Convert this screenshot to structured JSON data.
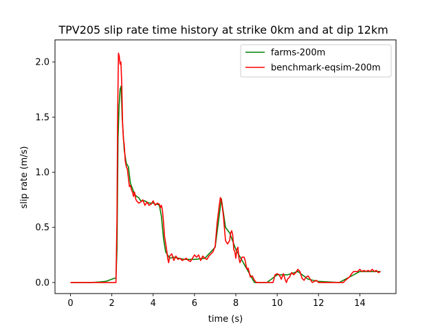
{
  "chart_data": {
    "type": "line",
    "title": "TPV205 slip rate time history at strike 0km and at dip 12km",
    "xlabel": "time (s)",
    "ylabel": "slip rate (m/s)",
    "xlim": [
      -0.75,
      15.75
    ],
    "ylim": [
      -0.1,
      2.2
    ],
    "xticks": [
      0,
      2,
      4,
      6,
      8,
      10,
      12,
      14
    ],
    "xtick_labels": [
      "0",
      "2",
      "4",
      "6",
      "8",
      "10",
      "12",
      "14"
    ],
    "yticks": [
      0.0,
      0.5,
      1.0,
      1.5,
      2.0
    ],
    "ytick_labels": [
      "0.0",
      "0.5",
      "1.0",
      "1.5",
      "2.0"
    ],
    "grid": false,
    "legend_position": "top-right",
    "series": [
      {
        "name": "farms-200m",
        "color": "#008000",
        "points": [
          [
            0,
            0
          ],
          [
            1.0,
            0.0
          ],
          [
            1.4,
            0.005
          ],
          [
            1.7,
            0.01
          ],
          [
            2.0,
            0.03
          ],
          [
            2.15,
            0.04
          ],
          [
            2.2,
            0.04
          ],
          [
            2.25,
            0.3
          ],
          [
            2.3,
            1.3
          ],
          [
            2.35,
            1.6
          ],
          [
            2.4,
            1.75
          ],
          [
            2.45,
            1.78
          ],
          [
            2.5,
            1.5
          ],
          [
            2.55,
            1.35
          ],
          [
            2.6,
            1.2
          ],
          [
            2.7,
            1.08
          ],
          [
            2.8,
            1.05
          ],
          [
            2.9,
            0.9
          ],
          [
            3.0,
            0.85
          ],
          [
            3.1,
            0.8
          ],
          [
            3.2,
            0.78
          ],
          [
            3.3,
            0.77
          ],
          [
            3.4,
            0.74
          ],
          [
            3.5,
            0.74
          ],
          [
            3.6,
            0.74
          ],
          [
            3.7,
            0.73
          ],
          [
            3.8,
            0.72
          ],
          [
            3.9,
            0.72
          ],
          [
            4.0,
            0.72
          ],
          [
            4.1,
            0.71
          ],
          [
            4.2,
            0.71
          ],
          [
            4.3,
            0.7
          ],
          [
            4.4,
            0.6
          ],
          [
            4.5,
            0.4
          ],
          [
            4.6,
            0.28
          ],
          [
            4.7,
            0.25
          ],
          [
            4.8,
            0.22
          ],
          [
            5.0,
            0.23
          ],
          [
            5.5,
            0.21
          ],
          [
            6.0,
            0.21
          ],
          [
            6.5,
            0.22
          ],
          [
            7.0,
            0.32
          ],
          [
            7.3,
            0.76
          ],
          [
            7.5,
            0.5
          ],
          [
            7.7,
            0.45
          ],
          [
            8.0,
            0.3
          ],
          [
            8.3,
            0.2
          ],
          [
            8.6,
            0.1
          ],
          [
            8.9,
            0.0
          ],
          [
            9.5,
            0.0
          ],
          [
            10.0,
            0.07
          ],
          [
            10.5,
            0.07
          ],
          [
            11.0,
            0.1
          ],
          [
            11.5,
            0.03
          ],
          [
            12.0,
            0.01
          ],
          [
            13.0,
            0.0
          ],
          [
            13.5,
            0.05
          ],
          [
            14.0,
            0.1
          ],
          [
            14.5,
            0.1
          ],
          [
            15.0,
            0.1
          ]
        ]
      },
      {
        "name": "benchmark-eqsim-200m",
        "color": "#ff0000",
        "points": [
          [
            0,
            0
          ],
          [
            1.0,
            0.0
          ],
          [
            1.5,
            0.0
          ],
          [
            2.0,
            0.0
          ],
          [
            2.2,
            0.0
          ],
          [
            2.25,
            0.6
          ],
          [
            2.28,
            1.5
          ],
          [
            2.32,
            2.08
          ],
          [
            2.36,
            2.05
          ],
          [
            2.4,
            1.98
          ],
          [
            2.44,
            2.0
          ],
          [
            2.48,
            1.8
          ],
          [
            2.52,
            1.45
          ],
          [
            2.56,
            1.3
          ],
          [
            2.6,
            1.25
          ],
          [
            2.65,
            1.1
          ],
          [
            2.7,
            1.05
          ],
          [
            2.75,
            1.03
          ],
          [
            2.8,
            0.95
          ],
          [
            2.85,
            0.87
          ],
          [
            2.9,
            0.88
          ],
          [
            2.95,
            0.84
          ],
          [
            3.0,
            0.82
          ],
          [
            3.05,
            0.78
          ],
          [
            3.1,
            0.82
          ],
          [
            3.15,
            0.76
          ],
          [
            3.2,
            0.74
          ],
          [
            3.3,
            0.72
          ],
          [
            3.4,
            0.73
          ],
          [
            3.5,
            0.75
          ],
          [
            3.6,
            0.7
          ],
          [
            3.7,
            0.73
          ],
          [
            3.8,
            0.7
          ],
          [
            3.9,
            0.71
          ],
          [
            4.0,
            0.74
          ],
          [
            4.1,
            0.7
          ],
          [
            4.2,
            0.72
          ],
          [
            4.3,
            0.71
          ],
          [
            4.35,
            0.68
          ],
          [
            4.4,
            0.7
          ],
          [
            4.45,
            0.65
          ],
          [
            4.5,
            0.55
          ],
          [
            4.55,
            0.42
          ],
          [
            4.6,
            0.36
          ],
          [
            4.65,
            0.3
          ],
          [
            4.7,
            0.22
          ],
          [
            4.75,
            0.18
          ],
          [
            4.8,
            0.24
          ],
          [
            4.9,
            0.26
          ],
          [
            5.0,
            0.2
          ],
          [
            5.1,
            0.24
          ],
          [
            5.2,
            0.21
          ],
          [
            5.3,
            0.22
          ],
          [
            5.4,
            0.2
          ],
          [
            5.5,
            0.21
          ],
          [
            5.6,
            0.22
          ],
          [
            5.7,
            0.2
          ],
          [
            5.8,
            0.19
          ],
          [
            5.9,
            0.22
          ],
          [
            6.0,
            0.25
          ],
          [
            6.1,
            0.23
          ],
          [
            6.2,
            0.25
          ],
          [
            6.3,
            0.2
          ],
          [
            6.4,
            0.24
          ],
          [
            6.5,
            0.22
          ],
          [
            6.6,
            0.21
          ],
          [
            6.7,
            0.24
          ],
          [
            6.8,
            0.26
          ],
          [
            6.9,
            0.28
          ],
          [
            7.0,
            0.33
          ],
          [
            7.1,
            0.55
          ],
          [
            7.2,
            0.7
          ],
          [
            7.25,
            0.77
          ],
          [
            7.3,
            0.75
          ],
          [
            7.35,
            0.68
          ],
          [
            7.4,
            0.6
          ],
          [
            7.5,
            0.38
          ],
          [
            7.6,
            0.35
          ],
          [
            7.7,
            0.38
          ],
          [
            7.75,
            0.45
          ],
          [
            7.8,
            0.47
          ],
          [
            7.85,
            0.43
          ],
          [
            7.9,
            0.3
          ],
          [
            7.95,
            0.28
          ],
          [
            8.0,
            0.22
          ],
          [
            8.05,
            0.3
          ],
          [
            8.1,
            0.32
          ],
          [
            8.15,
            0.22
          ],
          [
            8.2,
            0.18
          ],
          [
            8.3,
            0.23
          ],
          [
            8.4,
            0.23
          ],
          [
            8.45,
            0.2
          ],
          [
            8.5,
            0.15
          ],
          [
            8.55,
            0.12
          ],
          [
            8.6,
            0.13
          ],
          [
            8.7,
            0.05
          ],
          [
            8.8,
            0.06
          ],
          [
            8.9,
            0.02
          ],
          [
            9.0,
            0.0
          ],
          [
            9.4,
            0.0
          ],
          [
            9.6,
            0.0
          ],
          [
            9.8,
            0.0
          ],
          [
            9.9,
            0.07
          ],
          [
            10.0,
            0.08
          ],
          [
            10.1,
            0.07
          ],
          [
            10.2,
            0.03
          ],
          [
            10.3,
            0.08
          ],
          [
            10.4,
            0.02
          ],
          [
            10.45,
            0.0
          ],
          [
            10.5,
            0.03
          ],
          [
            10.6,
            0.05
          ],
          [
            10.7,
            0.09
          ],
          [
            10.8,
            0.07
          ],
          [
            10.9,
            0.09
          ],
          [
            11.0,
            0.12
          ],
          [
            11.1,
            0.1
          ],
          [
            11.2,
            0.04
          ],
          [
            11.3,
            0.02
          ],
          [
            11.4,
            0.05
          ],
          [
            11.5,
            0.06
          ],
          [
            11.6,
            0.03
          ],
          [
            11.7,
            0.0
          ],
          [
            11.8,
            0.01
          ],
          [
            11.9,
            0.02
          ],
          [
            12.0,
            0.0
          ],
          [
            12.2,
            0.0
          ],
          [
            12.5,
            0.0
          ],
          [
            13.0,
            0.0
          ],
          [
            13.2,
            0.0
          ],
          [
            13.3,
            0.02
          ],
          [
            13.5,
            0.05
          ],
          [
            13.6,
            0.08
          ],
          [
            13.7,
            0.1
          ],
          [
            13.9,
            0.1
          ],
          [
            14.0,
            0.12
          ],
          [
            14.1,
            0.1
          ],
          [
            14.2,
            0.11
          ],
          [
            14.3,
            0.1
          ],
          [
            14.4,
            0.11
          ],
          [
            14.5,
            0.1
          ],
          [
            14.6,
            0.12
          ],
          [
            14.7,
            0.1
          ],
          [
            14.8,
            0.11
          ],
          [
            14.9,
            0.09
          ],
          [
            15.0,
            0.1
          ]
        ]
      }
    ]
  }
}
